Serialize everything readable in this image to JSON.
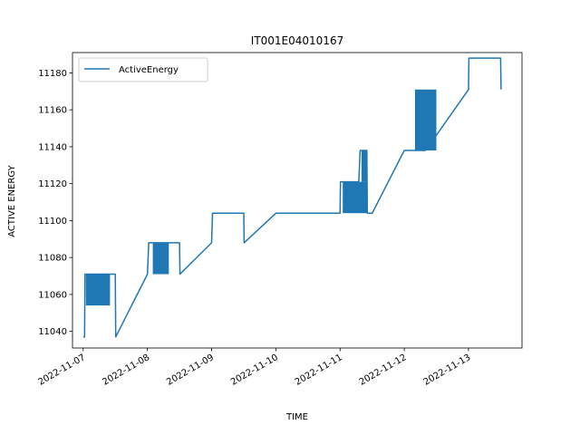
{
  "chart_data": {
    "type": "line",
    "title": "IT001E04010167",
    "xlabel": "TIME",
    "ylabel": "ACTIVE ENERGY",
    "legend": {
      "position": "top-left",
      "entries": [
        "ActiveEnergy"
      ]
    },
    "grid": false,
    "xlim": [
      "2022-11-06T20:00",
      "2022-11-13T20:00"
    ],
    "ylim": [
      11031,
      11191
    ],
    "x_ticks": [
      "2022-11-07",
      "2022-11-08",
      "2022-11-09",
      "2022-11-10",
      "2022-11-11",
      "2022-11-12",
      "2022-11-13"
    ],
    "y_ticks": [
      11040,
      11060,
      11080,
      11100,
      11120,
      11140,
      11160,
      11180
    ],
    "series": [
      {
        "name": "ActiveEnergy",
        "color": "#1f77b4",
        "points": [
          [
            "2022-11-07T00:00",
            11037
          ],
          [
            "2022-11-07T00:30",
            11037
          ],
          [
            "2022-11-07T00:40",
            11071
          ],
          [
            "2022-11-07T08:00",
            11071
          ],
          [
            "2022-11-07T12:00",
            11071
          ],
          [
            "2022-11-07T12:10",
            11037
          ],
          [
            "2022-11-08T00:00",
            11071
          ],
          [
            "2022-11-08T00:30",
            11088
          ],
          [
            "2022-11-08T09:00",
            11088
          ],
          [
            "2022-11-08T12:00",
            11088
          ],
          [
            "2022-11-08T12:10",
            11071
          ],
          [
            "2022-11-09T00:00",
            11088
          ],
          [
            "2022-11-09T00:20",
            11104
          ],
          [
            "2022-11-09T12:00",
            11104
          ],
          [
            "2022-11-09T12:10",
            11088
          ],
          [
            "2022-11-10T00:00",
            11104
          ],
          [
            "2022-11-11T00:00",
            11104
          ],
          [
            "2022-11-11T00:10",
            11121
          ],
          [
            "2022-11-11T07:00",
            11121
          ],
          [
            "2022-11-11T07:30",
            11138
          ],
          [
            "2022-11-11T10:00",
            11138
          ],
          [
            "2022-11-11T10:10",
            11104
          ],
          [
            "2022-11-11T12:00",
            11104
          ],
          [
            "2022-11-12T00:00",
            11138
          ],
          [
            "2022-11-12T08:00",
            11138
          ],
          [
            "2022-11-13T00:00",
            11171
          ],
          [
            "2022-11-13T00:10",
            11188
          ],
          [
            "2022-11-13T12:00",
            11188
          ],
          [
            "2022-11-13T12:10",
            11171
          ]
        ],
        "oscillation_bands": [
          {
            "from": "2022-11-07T01:00",
            "to": "2022-11-07T10:00",
            "low": 11054,
            "high": 11071
          },
          {
            "from": "2022-11-08T02:00",
            "to": "2022-11-08T08:00",
            "low": 11071,
            "high": 11088
          },
          {
            "from": "2022-11-11T01:00",
            "to": "2022-11-11T10:00",
            "low": 11104,
            "high": 11121
          },
          {
            "from": "2022-11-11T08:00",
            "to": "2022-11-11T10:00",
            "low": 11121,
            "high": 11138
          },
          {
            "from": "2022-11-12T04:00",
            "to": "2022-11-12T12:00",
            "low": 11138,
            "high": 11171
          }
        ]
      }
    ]
  }
}
